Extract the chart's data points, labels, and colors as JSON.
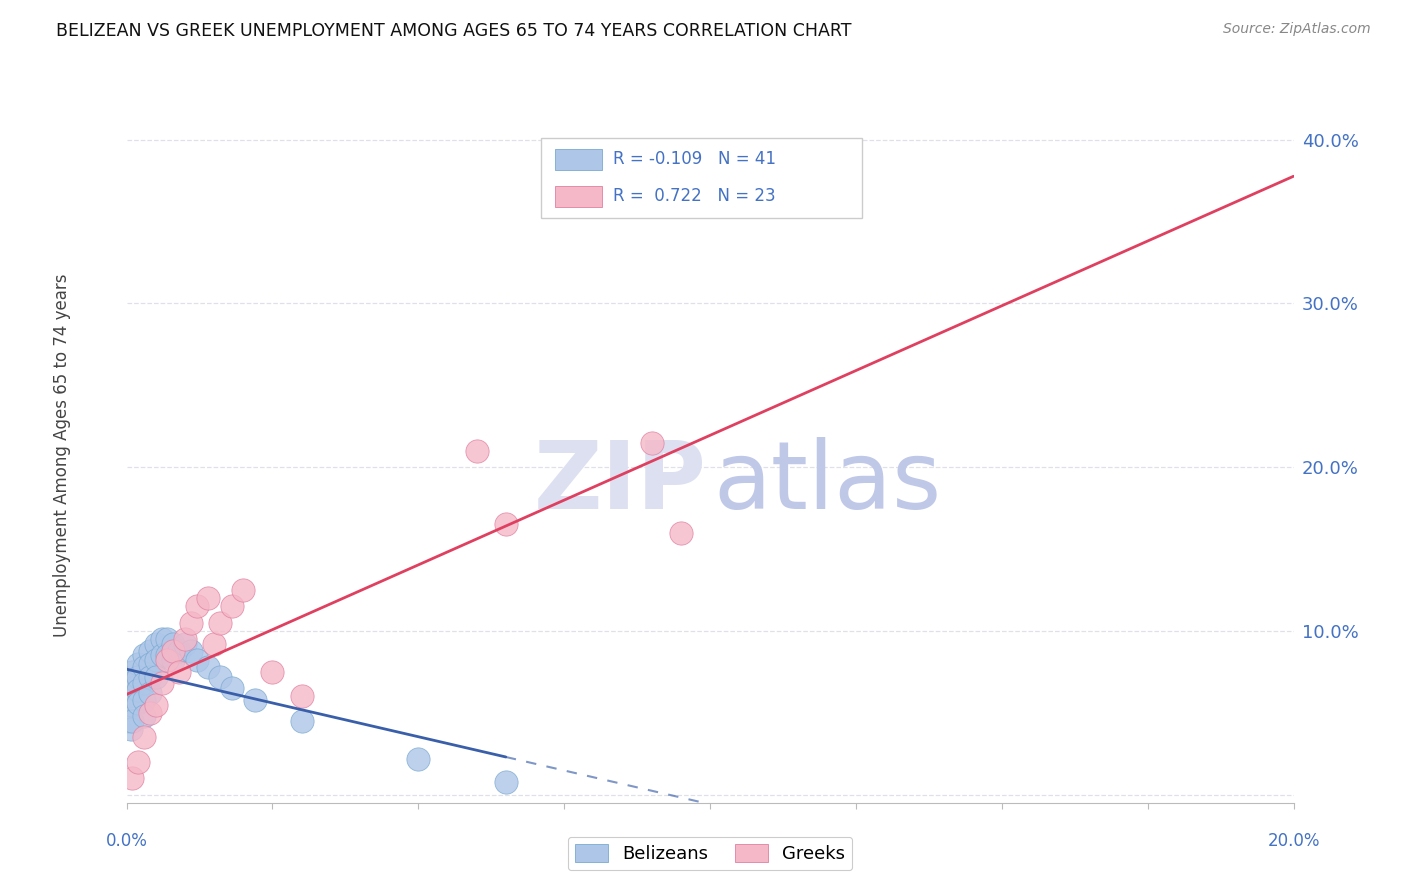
{
  "title": "BELIZEAN VS GREEK UNEMPLOYMENT AMONG AGES 65 TO 74 YEARS CORRELATION CHART",
  "source": "Source: ZipAtlas.com",
  "ylabel": "Unemployment Among Ages 65 to 74 years",
  "xmin": 0.0,
  "xmax": 0.2,
  "ymin": -0.005,
  "ymax": 0.42,
  "belizean_color": "#aec6e8",
  "belizean_edge": "#7aaad0",
  "greek_color": "#f5b8c8",
  "greek_edge": "#e080a0",
  "belizean_line_color": "#3a5faa",
  "greek_line_color": "#e04060",
  "watermark_zip_color": "#dde0f0",
  "watermark_atlas_color": "#c0c8e8",
  "title_color": "#111111",
  "source_color": "#888888",
  "ytick_color": "#4472c4",
  "xtick_color": "#4472c4",
  "legend_text_color": "#4472c4",
  "grid_color": "#e0e0e8",
  "belizean_x": [
    0.0003,
    0.0005,
    0.0007,
    0.001,
    0.001,
    0.001,
    0.001,
    0.0015,
    0.002,
    0.002,
    0.002,
    0.002,
    0.003,
    0.003,
    0.003,
    0.003,
    0.003,
    0.004,
    0.004,
    0.004,
    0.004,
    0.005,
    0.005,
    0.005,
    0.006,
    0.006,
    0.007,
    0.007,
    0.008,
    0.008,
    0.009,
    0.01,
    0.011,
    0.012,
    0.014,
    0.016,
    0.018,
    0.022,
    0.03,
    0.05,
    0.065
  ],
  "belizean_y": [
    0.045,
    0.06,
    0.04,
    0.075,
    0.065,
    0.055,
    0.045,
    0.07,
    0.08,
    0.072,
    0.064,
    0.056,
    0.085,
    0.078,
    0.068,
    0.058,
    0.048,
    0.088,
    0.08,
    0.072,
    0.062,
    0.092,
    0.082,
    0.072,
    0.095,
    0.085,
    0.095,
    0.085,
    0.092,
    0.082,
    0.088,
    0.092,
    0.088,
    0.082,
    0.078,
    0.072,
    0.065,
    0.058,
    0.045,
    0.022,
    0.008
  ],
  "greek_x": [
    0.001,
    0.002,
    0.003,
    0.004,
    0.005,
    0.006,
    0.007,
    0.008,
    0.009,
    0.01,
    0.011,
    0.012,
    0.014,
    0.015,
    0.016,
    0.018,
    0.02,
    0.025,
    0.03,
    0.06,
    0.065,
    0.09,
    0.095
  ],
  "greek_y": [
    0.01,
    0.02,
    0.035,
    0.05,
    0.055,
    0.068,
    0.082,
    0.088,
    0.075,
    0.095,
    0.105,
    0.115,
    0.12,
    0.092,
    0.105,
    0.115,
    0.125,
    0.075,
    0.06,
    0.21,
    0.165,
    0.215,
    0.16
  ],
  "belizean_R": -0.109,
  "belizean_N": 41,
  "greek_R": 0.722,
  "greek_N": 23
}
